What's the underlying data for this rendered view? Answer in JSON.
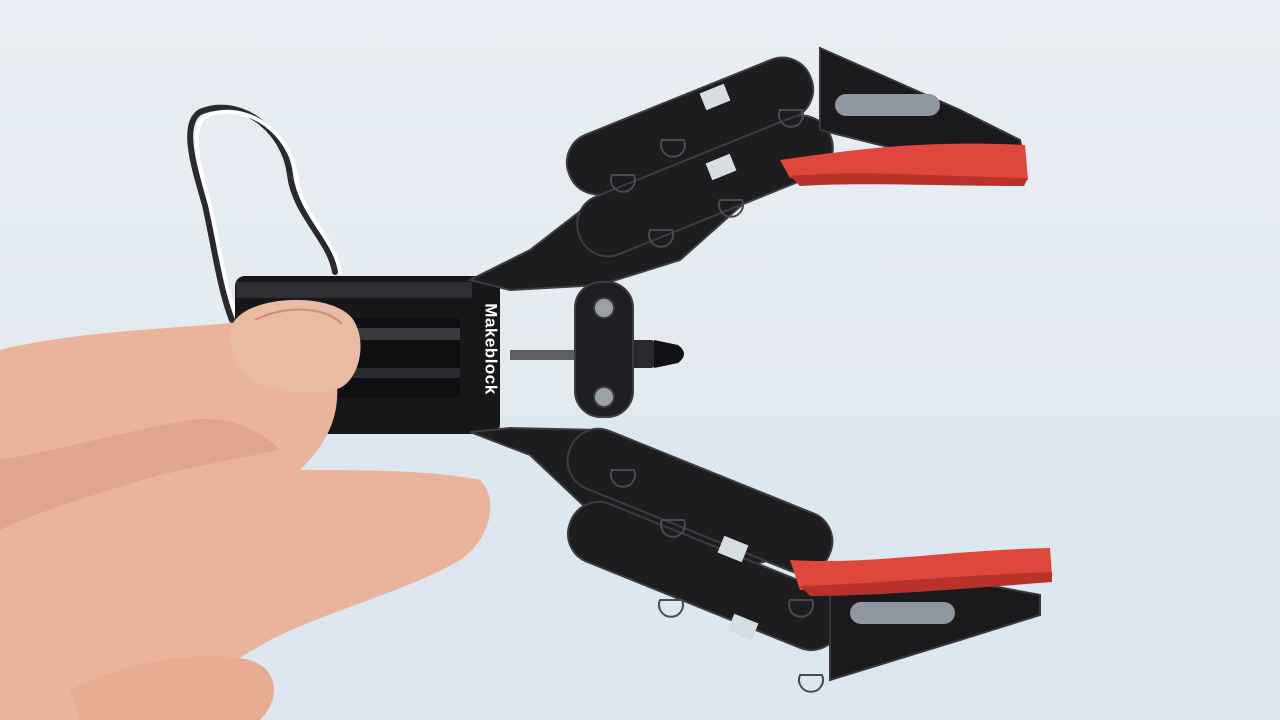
{
  "photo": {
    "subject": "",
    "brand_text": "Makeblock"
  },
  "palette": {
    "background": "#e5ecf2",
    "plastic": "#1c1c1e",
    "plastic_edge": "#3a3a3e",
    "grip_red": "#e0473c",
    "skin": "#e9b49b",
    "skin_shadow": "#c98c74"
  }
}
